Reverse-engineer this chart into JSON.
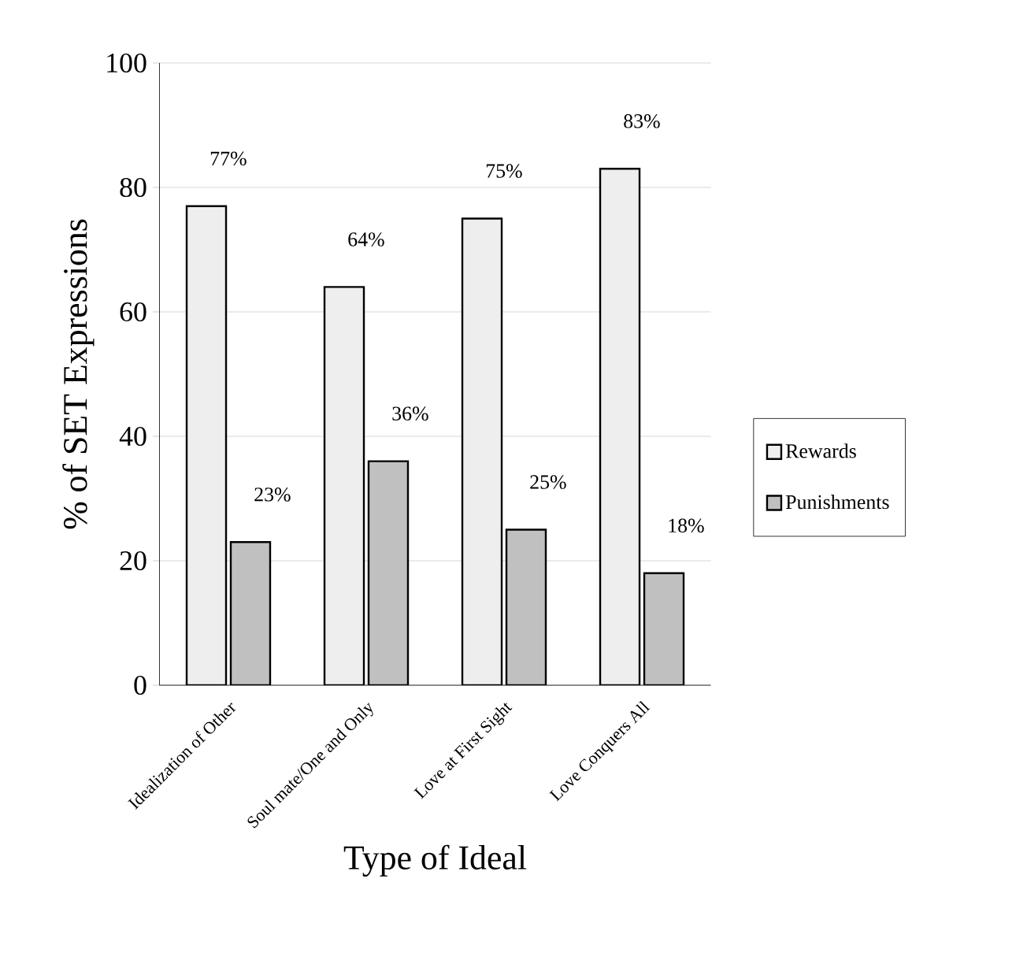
{
  "chart_data": {
    "type": "bar",
    "xlabel": "Type of Ideal",
    "ylabel": "% of SET Expressions",
    "categories": [
      "Idealization of Other",
      "Soul mate/One and Only",
      "Love at First Sight",
      "Love Conquers All"
    ],
    "series": [
      {
        "name": "Rewards",
        "color": "#eeeeee",
        "values": [
          77,
          64,
          75,
          83
        ],
        "value_labels": [
          "77%",
          "64%",
          "75%",
          "83%"
        ]
      },
      {
        "name": "Punishments",
        "color": "#c0c0c0",
        "values": [
          23,
          36,
          25,
          18
        ],
        "value_labels": [
          "23%",
          "36%",
          "25%",
          "18%"
        ]
      }
    ],
    "ylim": [
      0,
      100
    ],
    "yticks": [
      0,
      20,
      40,
      60,
      80,
      100
    ],
    "grid": "y",
    "legend": "right"
  }
}
